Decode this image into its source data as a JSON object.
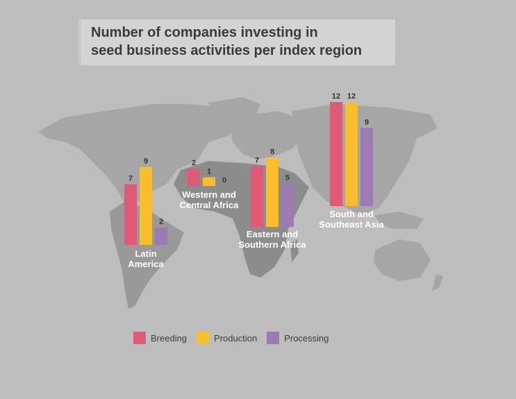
{
  "title": {
    "line1": "Number of companies investing in",
    "line2": "seed business activities per index region"
  },
  "colors": {
    "breeding": "#e05a78",
    "production": "#fcbd2c",
    "processing": "#9c7ab4",
    "map_land": "#a3a3a3",
    "map_africa": "#8a8a8a"
  },
  "chart_data": {
    "type": "bar",
    "categories": [
      "Latin America",
      "Western and Central Africa",
      "Eastern and Southern Africa",
      "South and Southeast Asia"
    ],
    "category_label_lines": [
      [
        "Latin",
        "America"
      ],
      [
        "Western and",
        "Central Africa"
      ],
      [
        "Eastern and",
        "Southern Africa"
      ],
      [
        "South and",
        "Southeast Asia"
      ]
    ],
    "series": [
      {
        "name": "Breeding",
        "values": [
          7,
          2,
          7,
          12
        ]
      },
      {
        "name": "Production",
        "values": [
          9,
          1,
          8,
          12
        ]
      },
      {
        "name": "Processing",
        "values": [
          2,
          0,
          5,
          9
        ]
      }
    ],
    "legend_position": "bottom",
    "grid": false
  },
  "legend": {
    "items": [
      "Breeding",
      "Production",
      "Processing"
    ]
  }
}
